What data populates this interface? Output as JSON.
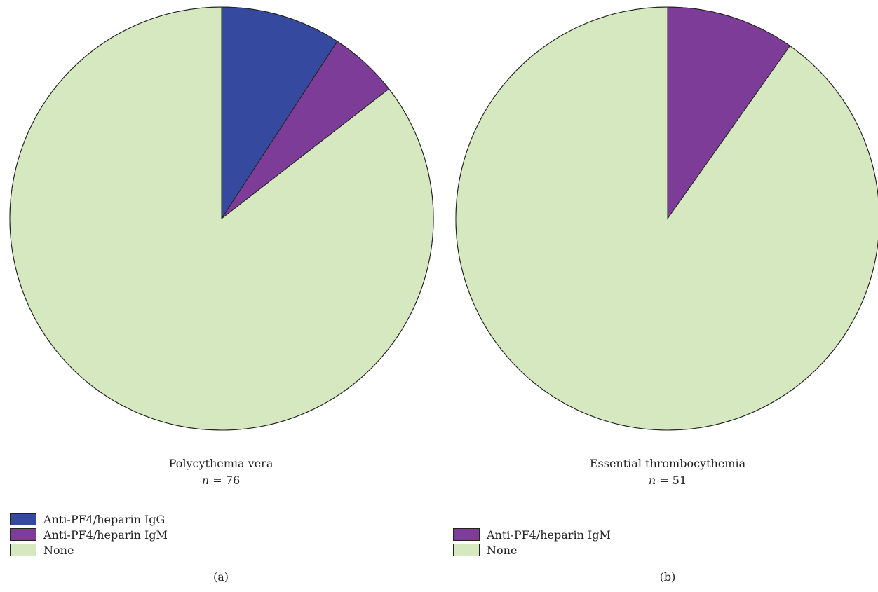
{
  "chart_data": [
    {
      "type": "pie",
      "panel_label": "(a)",
      "title": "Polycythemia vera",
      "n_label": "n",
      "n_value": "= 76",
      "slices": [
        {
          "label": "Anti-PF4/heparin IgG",
          "value": 9.2,
          "color": "#354a9e"
        },
        {
          "label": "Anti-PF4/heparin IgM",
          "value": 5.3,
          "color": "#7d3c98"
        },
        {
          "label": "None",
          "value": 85.5,
          "color": "#d6e8c0"
        }
      ],
      "legend": [
        "Anti-PF4/heparin IgG",
        "Anti-PF4/heparin IgM",
        "None"
      ]
    },
    {
      "type": "pie",
      "panel_label": "(b)",
      "title": "Essential thrombocythemia",
      "n_label": "n",
      "n_value": "= 51",
      "slices": [
        {
          "label": "Anti-PF4/heparin IgM",
          "value": 9.8,
          "color": "#7d3c98"
        },
        {
          "label": "None",
          "value": 90.2,
          "color": "#d6e8c0"
        }
      ],
      "legend": [
        "Anti-PF4/heparin IgM",
        "None"
      ]
    }
  ]
}
